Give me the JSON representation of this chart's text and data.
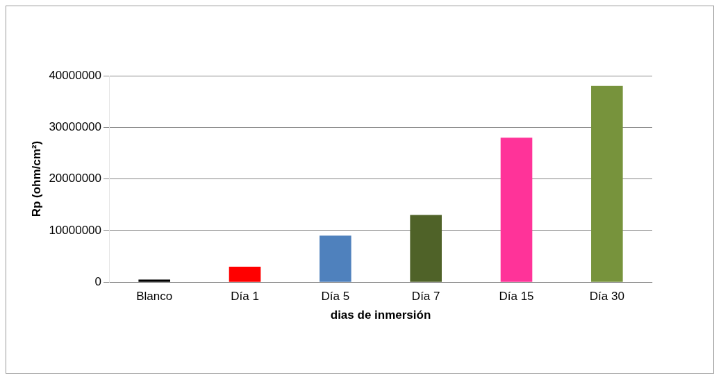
{
  "chart_data": {
    "type": "bar",
    "xlabel": "dias de inmersión",
    "ylabel": "Rp (ohm/cm²)",
    "categories": [
      "Blanco",
      "Día 1",
      "Día 5",
      "Día 7",
      "Día 15",
      "Día 30"
    ],
    "values": [
      500000,
      3000000,
      9000000,
      13000000,
      28000000,
      38000000
    ],
    "colors": [
      "#000000",
      "#ff0000",
      "#4f81bd",
      "#4f6228",
      "#ff3399",
      "#77933c"
    ],
    "ylim": [
      0,
      40000000
    ],
    "yticks": [
      0,
      10000000,
      20000000,
      30000000,
      40000000
    ],
    "grid": "y",
    "legend": false
  }
}
